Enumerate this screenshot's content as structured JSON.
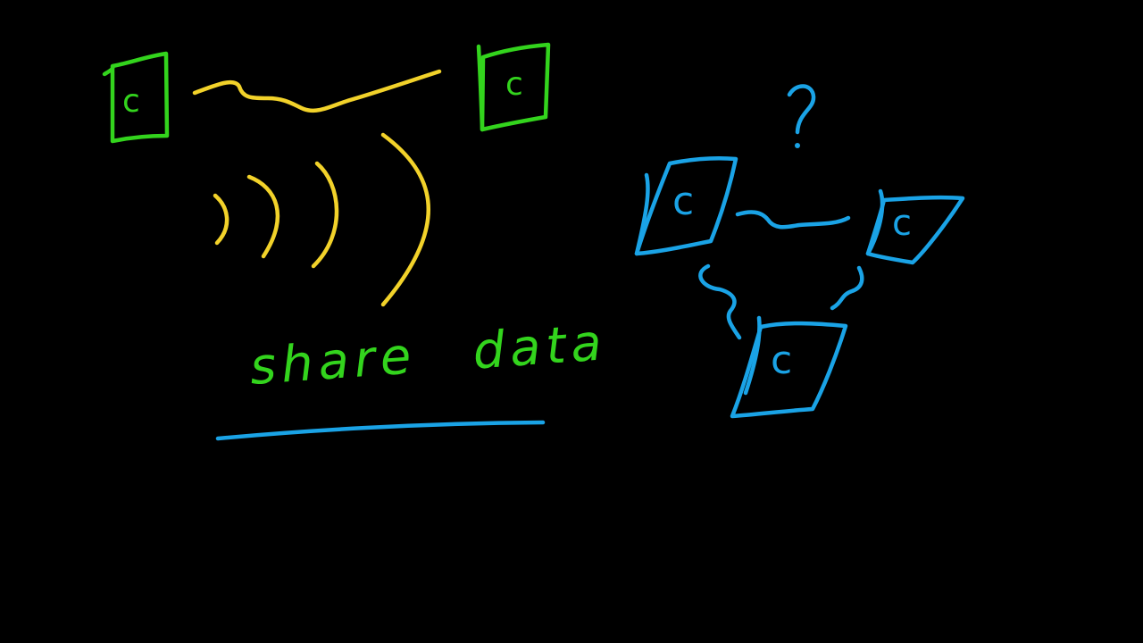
{
  "left_group": {
    "computer_letter": "c",
    "caption": "share data",
    "color_nodes": "#33d41d",
    "color_links": "#f2d22a",
    "color_underline": "#1aa3e6"
  },
  "right_group": {
    "computer_letter": "c",
    "question_mark": "?",
    "color": "#1aa3e6"
  }
}
